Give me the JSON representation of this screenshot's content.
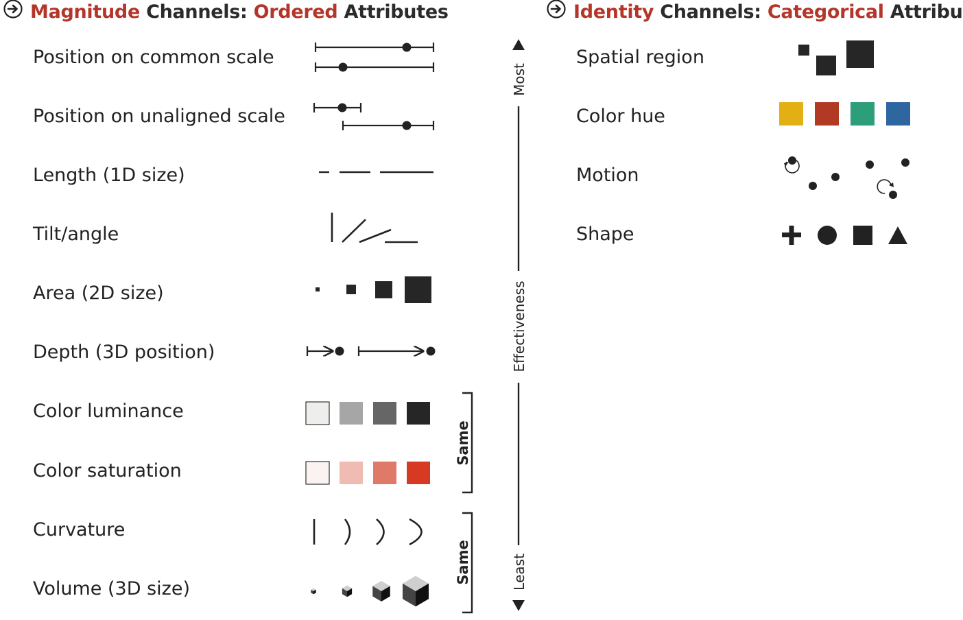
{
  "left": {
    "title_part1": "Magnitude",
    "title_part2": "Channels:",
    "title_part3": "Ordered",
    "title_part4": "Attributes",
    "rows": [
      "Position on common scale",
      "Position on unaligned scale",
      "Length (1D size)",
      "Tilt/angle",
      "Area (2D size)",
      "Depth (3D position)",
      "Color luminance",
      "Color saturation",
      "Curvature",
      "Volume (3D size)"
    ]
  },
  "right": {
    "title_part1": "Identity",
    "title_part2": "Channels:",
    "title_part3": "Categorical",
    "title_part4": "Attributes",
    "rows": [
      "Spatial region",
      "Color hue",
      "Motion",
      "Shape"
    ]
  },
  "axis": {
    "top_label": "Most",
    "middle_label": "Effectiveness",
    "bottom_label": "Least"
  },
  "brackets": {
    "upper_label": "Same",
    "lower_label": "Same"
  },
  "colors": {
    "accent_red": "#b4362a",
    "luminance": [
      "#eeeeec",
      "#a6a6a6",
      "#666666",
      "#262626"
    ],
    "saturation": [
      "#fbf3f1",
      "#efbbb2",
      "#e07a68",
      "#d63a22"
    ],
    "hue": [
      "#e2b012",
      "#b23a25",
      "#2c9e7a",
      "#2e66a0"
    ]
  },
  "icons": {
    "header_icon": "circle-arrow-right-icon",
    "motion_icon": "rotate-arrow-icon",
    "shape_icons": [
      "plus-icon",
      "circle-icon",
      "square-icon",
      "triangle-icon"
    ]
  }
}
